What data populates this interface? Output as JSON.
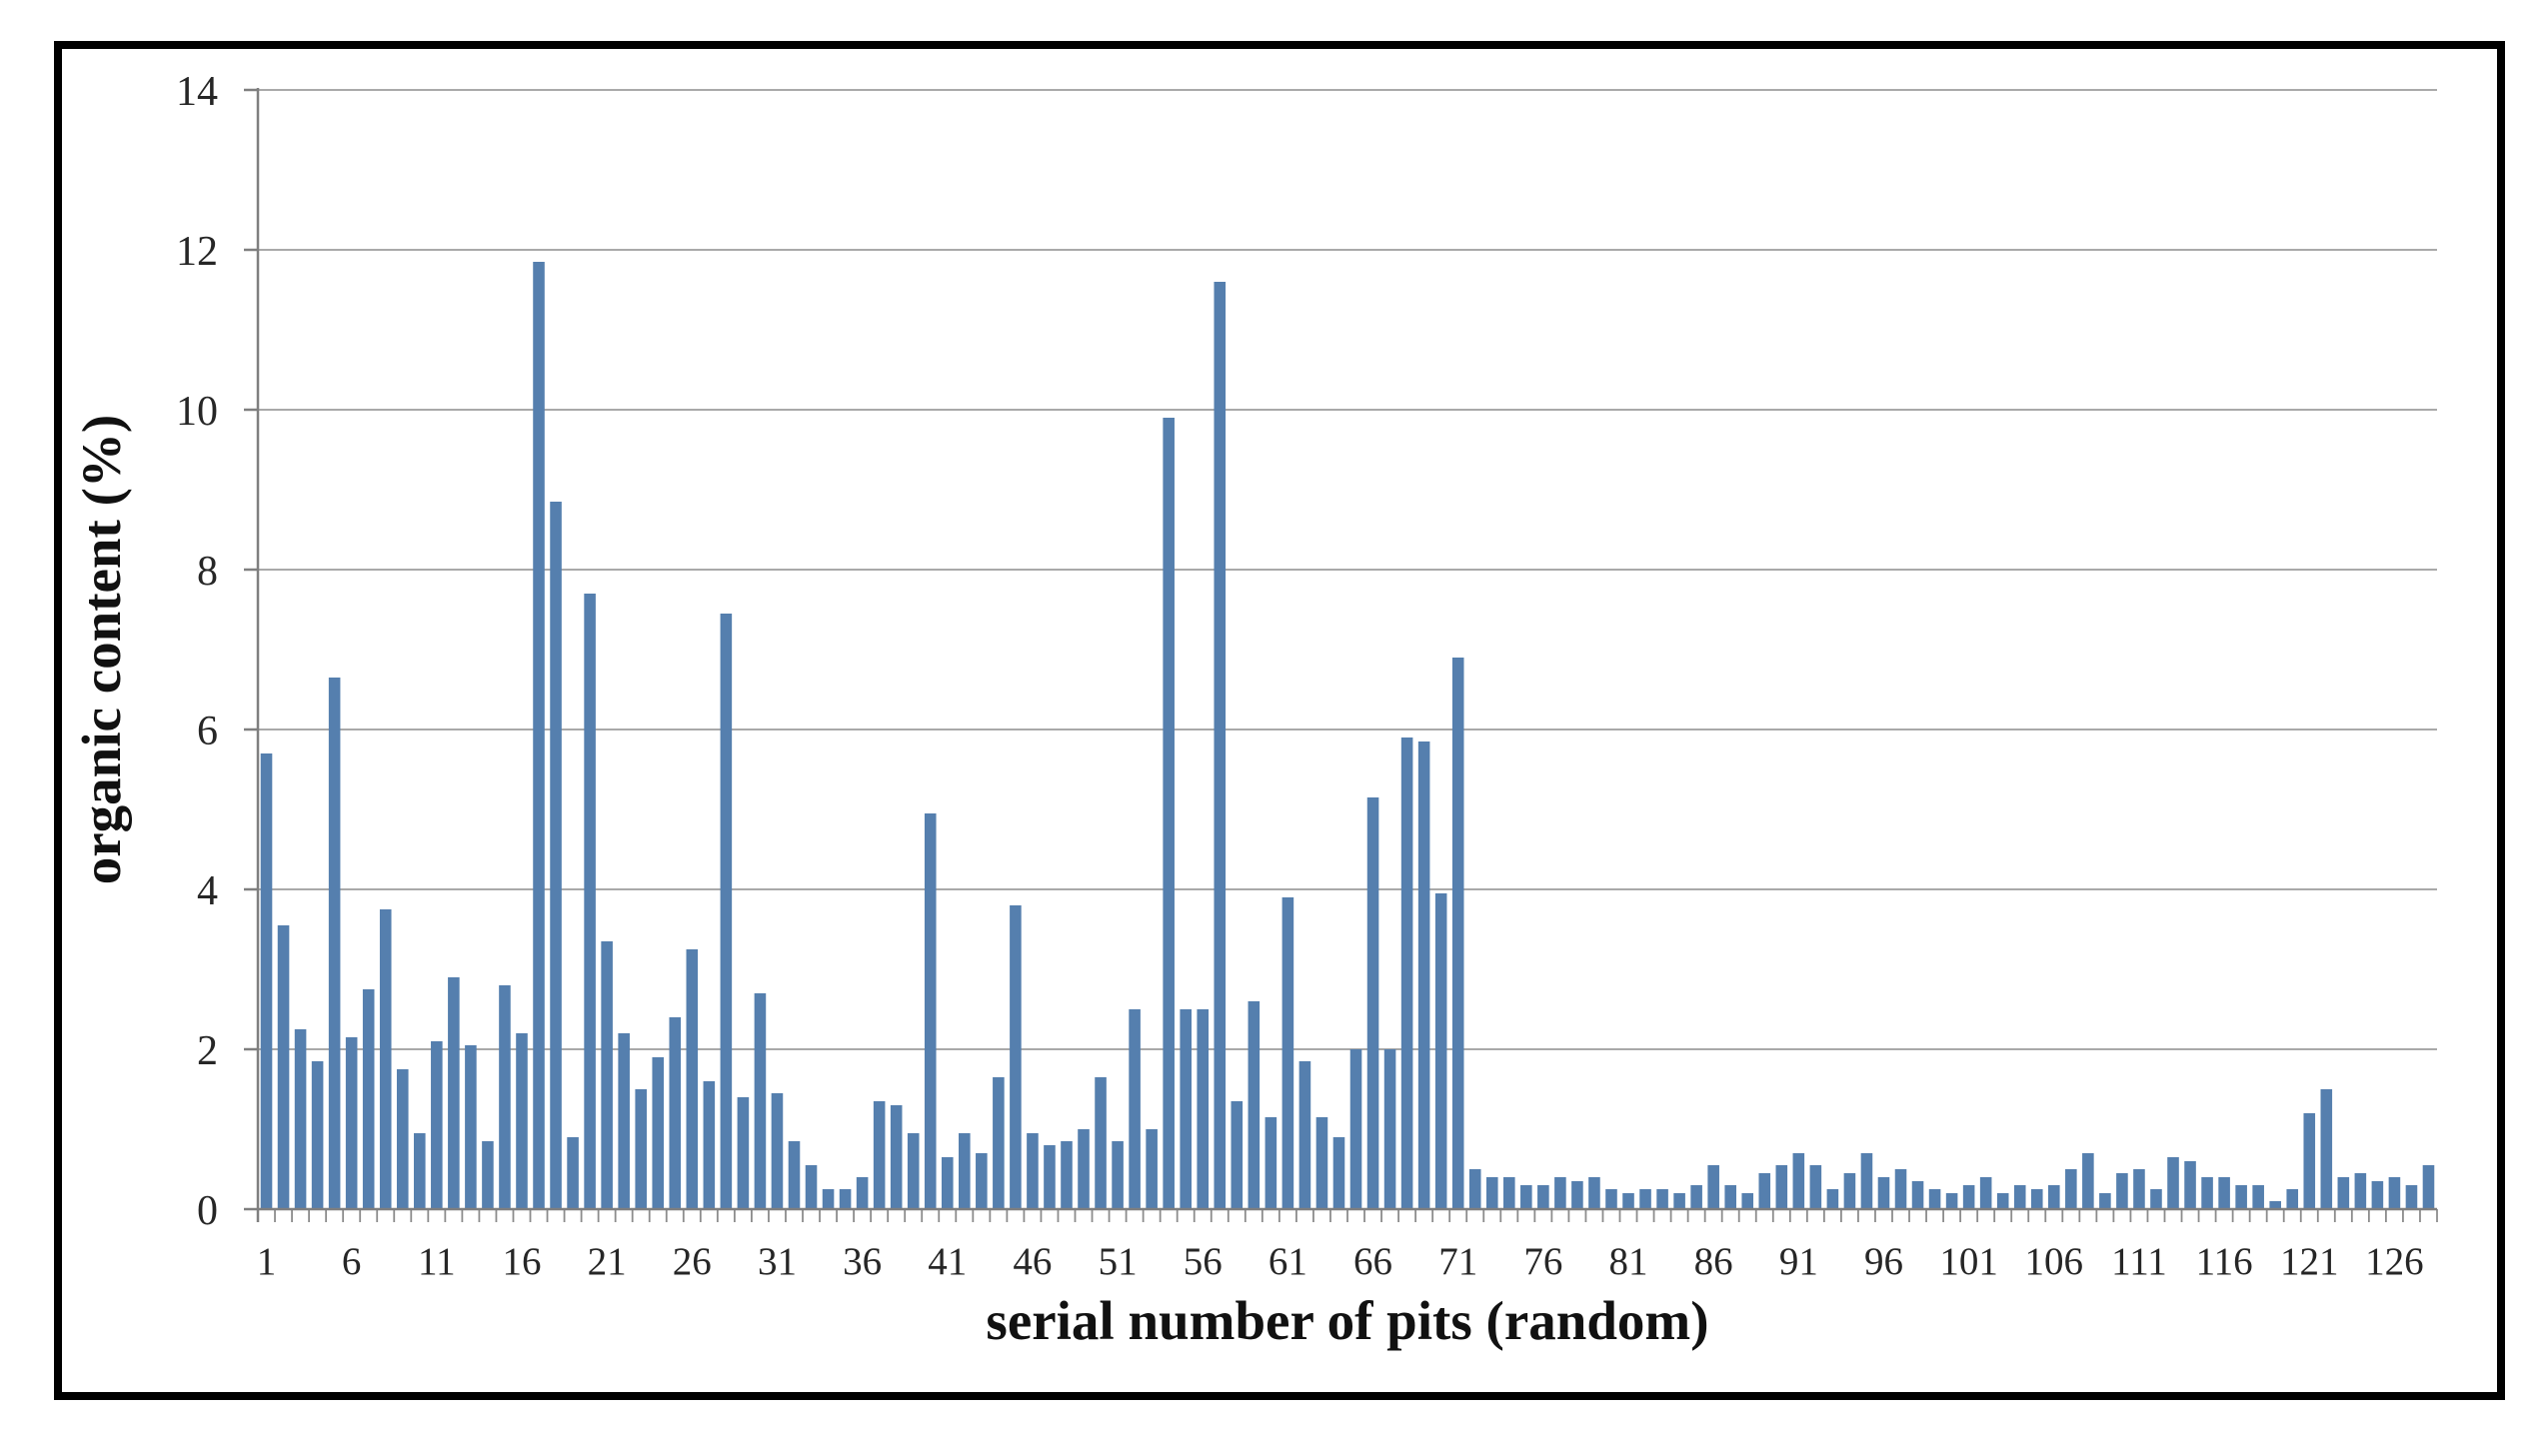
{
  "figure": {
    "background_color": "#ffffff",
    "border_color": "#000000"
  },
  "chart_data": {
    "type": "bar",
    "title": "",
    "xlabel": "serial number of pits (random)",
    "ylabel": "organic content (%)",
    "n_bars": 128,
    "x_start": 1,
    "values": [
      5.7,
      3.55,
      2.25,
      1.85,
      6.65,
      2.15,
      2.75,
      3.75,
      1.75,
      0.95,
      2.1,
      2.9,
      2.05,
      0.85,
      2.8,
      2.2,
      11.85,
      8.85,
      0.9,
      7.7,
      3.35,
      2.2,
      1.5,
      1.9,
      2.4,
      3.25,
      1.6,
      7.45,
      1.4,
      2.7,
      1.45,
      0.85,
      0.55,
      0.25,
      0.25,
      0.4,
      1.35,
      1.3,
      0.95,
      4.95,
      0.65,
      0.95,
      0.7,
      1.65,
      3.8,
      0.95,
      0.8,
      0.85,
      1.0,
      1.65,
      0.85,
      2.5,
      1.0,
      9.9,
      2.5,
      2.5,
      11.6,
      1.35,
      2.6,
      1.15,
      3.9,
      1.85,
      1.15,
      0.9,
      2.0,
      5.15,
      2.0,
      5.9,
      5.85,
      3.95,
      6.9,
      0.5,
      0.4,
      0.4,
      0.3,
      0.3,
      0.4,
      0.35,
      0.4,
      0.25,
      0.2,
      0.25,
      0.25,
      0.2,
      0.3,
      0.55,
      0.3,
      0.2,
      0.45,
      0.55,
      0.7,
      0.55,
      0.25,
      0.45,
      0.7,
      0.4,
      0.5,
      0.35,
      0.25,
      0.2,
      0.3,
      0.4,
      0.2,
      0.3,
      0.25,
      0.3,
      0.5,
      0.7,
      0.2,
      0.45,
      0.5,
      0.25,
      0.65,
      0.6,
      0.4,
      0.4,
      0.3,
      0.3,
      0.1,
      0.25,
      1.2,
      1.5,
      0.4,
      0.45,
      0.35,
      0.4,
      0.3,
      0.55
    ],
    "ylim": [
      0,
      14
    ],
    "yticks": [
      0,
      2,
      4,
      6,
      8,
      10,
      12,
      14
    ],
    "xtick_labels": [
      "1",
      "6",
      "11",
      "16",
      "21",
      "26",
      "31",
      "36",
      "41",
      "46",
      "51",
      "56",
      "61",
      "66",
      "71",
      "76",
      "81",
      "86",
      "91",
      "96",
      "101",
      "106",
      "111",
      "116",
      "121",
      "126"
    ],
    "xtick_every": 5,
    "grid": true,
    "legend": "none",
    "bar_color": "#557fae",
    "gridline_color": "#a9a9a9",
    "axis_color": "#7f7f7f",
    "tick_color": "#8c8c8c"
  }
}
